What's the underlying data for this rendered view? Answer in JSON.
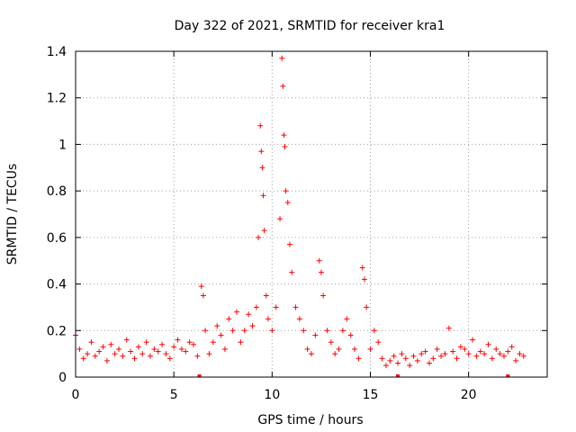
{
  "chart_data": {
    "type": "scatter",
    "title": "Day 322 of 2021, SRMTID for receiver kra1",
    "xlabel": "GPS time / hours",
    "ylabel": "SRMTID / TECUs",
    "xlim": [
      0,
      24
    ],
    "ylim": [
      0,
      1.4
    ],
    "x_ticks": [
      0,
      5,
      10,
      15,
      20
    ],
    "y_ticks": [
      0,
      0.2,
      0.4,
      0.6,
      0.8,
      1,
      1.2,
      1.4
    ],
    "x_tick_labels": [
      "0",
      "5",
      "10",
      "15",
      "20"
    ],
    "y_tick_labels": [
      "0",
      "0.2",
      "0.4",
      "0.6",
      "0.8",
      "1",
      "1.2",
      "1.4"
    ],
    "grid": true,
    "marker": "+",
    "color": "#ff0000",
    "baseline_markers_x": [
      6.3,
      16.4,
      22.0
    ],
    "series": [
      {
        "name": "SRMTID",
        "x": [
          0.0,
          0.2,
          0.4,
          0.6,
          0.8,
          1.0,
          1.2,
          1.4,
          1.6,
          1.8,
          2.0,
          2.2,
          2.4,
          2.6,
          2.8,
          3.0,
          3.2,
          3.4,
          3.6,
          3.8,
          4.0,
          4.2,
          4.4,
          4.6,
          4.8,
          5.0,
          5.2,
          5.4,
          5.6,
          5.8,
          6.0,
          6.2,
          6.4,
          6.5,
          6.6,
          6.8,
          7.0,
          7.2,
          7.4,
          7.6,
          7.8,
          8.0,
          8.2,
          8.4,
          8.6,
          8.8,
          9.0,
          9.2,
          9.3,
          9.4,
          9.45,
          9.5,
          9.55,
          9.6,
          9.7,
          9.8,
          10.0,
          10.2,
          10.4,
          10.5,
          10.55,
          10.6,
          10.65,
          10.7,
          10.8,
          10.9,
          11.0,
          11.2,
          11.4,
          11.6,
          11.8,
          12.0,
          12.2,
          12.4,
          12.5,
          12.6,
          12.8,
          13.0,
          13.2,
          13.4,
          13.6,
          13.8,
          14.0,
          14.2,
          14.4,
          14.6,
          14.7,
          14.8,
          15.0,
          15.2,
          15.4,
          15.6,
          15.8,
          16.0,
          16.2,
          16.4,
          16.6,
          16.8,
          17.0,
          17.2,
          17.4,
          17.6,
          17.8,
          18.0,
          18.2,
          18.4,
          18.6,
          18.8,
          19.0,
          19.2,
          19.4,
          19.6,
          19.8,
          20.0,
          20.2,
          20.4,
          20.6,
          20.8,
          21.0,
          21.2,
          21.4,
          21.6,
          21.8,
          22.0,
          22.2,
          22.4,
          22.6,
          22.8
        ],
        "y": [
          0.18,
          0.12,
          0.08,
          0.1,
          0.15,
          0.09,
          0.11,
          0.13,
          0.07,
          0.14,
          0.1,
          0.12,
          0.09,
          0.16,
          0.11,
          0.08,
          0.13,
          0.1,
          0.15,
          0.09,
          0.12,
          0.11,
          0.14,
          0.1,
          0.08,
          0.13,
          0.16,
          0.12,
          0.11,
          0.15,
          0.14,
          0.09,
          0.39,
          0.35,
          0.2,
          0.1,
          0.15,
          0.22,
          0.18,
          0.12,
          0.25,
          0.2,
          0.28,
          0.15,
          0.2,
          0.27,
          0.22,
          0.3,
          0.6,
          1.08,
          0.97,
          0.9,
          0.78,
          0.63,
          0.35,
          0.25,
          0.2,
          0.3,
          0.68,
          1.37,
          1.25,
          1.04,
          0.99,
          0.8,
          0.75,
          0.57,
          0.45,
          0.3,
          0.25,
          0.2,
          0.12,
          0.1,
          0.18,
          0.5,
          0.45,
          0.35,
          0.2,
          0.15,
          0.1,
          0.12,
          0.2,
          0.25,
          0.18,
          0.12,
          0.08,
          0.47,
          0.42,
          0.3,
          0.12,
          0.2,
          0.15,
          0.08,
          0.05,
          0.07,
          0.09,
          0.06,
          0.1,
          0.08,
          0.05,
          0.09,
          0.07,
          0.1,
          0.11,
          0.06,
          0.08,
          0.12,
          0.09,
          0.1,
          0.21,
          0.11,
          0.08,
          0.13,
          0.12,
          0.1,
          0.16,
          0.09,
          0.11,
          0.1,
          0.14,
          0.08,
          0.12,
          0.1,
          0.09,
          0.11,
          0.13,
          0.07,
          0.1,
          0.09
        ]
      }
    ]
  }
}
